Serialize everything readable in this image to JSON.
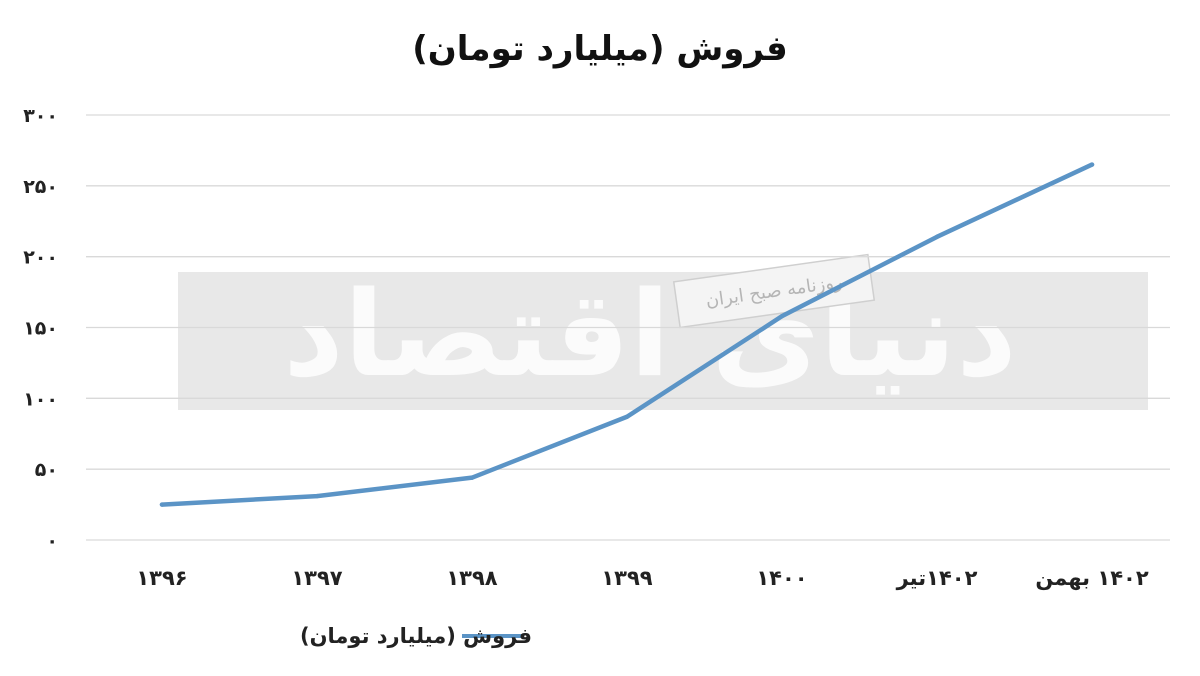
{
  "chart_data": {
    "type": "line",
    "title": "فروش (میلیارد تومان)",
    "categories": [
      "۱۳۹۶",
      "۱۳۹۷",
      "۱۳۹۸",
      "۱۳۹۹",
      "۱۴۰۰",
      "۱۴۰۲تیر",
      "۱۴۰۲ بهمن"
    ],
    "series": [
      {
        "name": "فروش (میلیارد تومان)",
        "values": [
          25,
          31,
          44,
          87,
          158,
          214,
          265
        ]
      }
    ],
    "yticks": [
      "۰",
      "۵۰",
      "۱۰۰",
      "۱۵۰",
      "۲۰۰",
      "۲۵۰",
      "۳۰۰"
    ],
    "ylim": [
      0,
      300
    ],
    "grid": true,
    "legend_position": "bottom",
    "colors": {
      "series": "#5b94c6",
      "grid": "#d9d9d9",
      "watermark_band": "#e6e6e6"
    }
  },
  "watermark": {
    "main_text": "دنیای اقتصاد",
    "sub_text": "روزنامه صبح ایران"
  }
}
